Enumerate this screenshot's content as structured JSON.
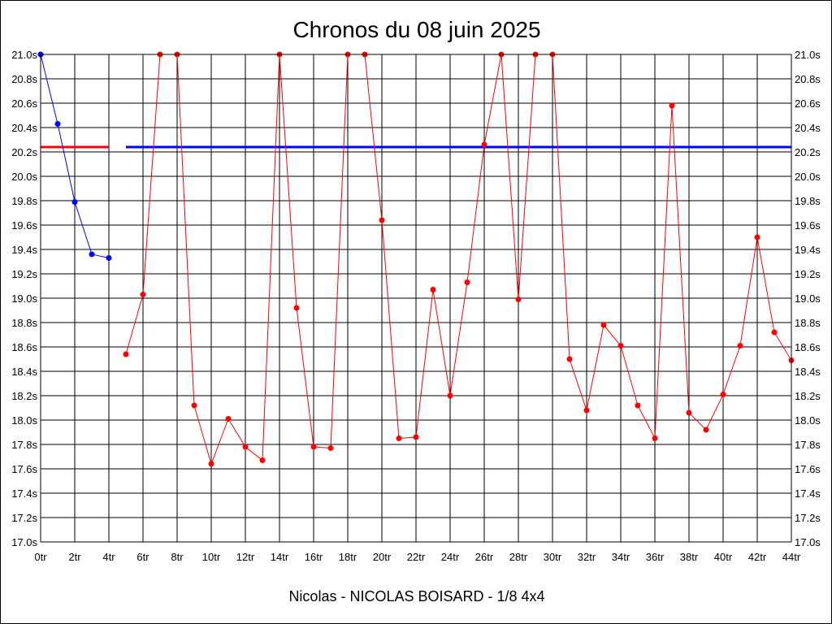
{
  "chart_data": {
    "type": "line",
    "title": "Chronos du 08 juin 2025",
    "caption": "Nicolas - NICOLAS BOISARD - 1/8 4x4",
    "x_range": [
      0,
      44
    ],
    "x_tick_labels": [
      "0tr",
      "2tr",
      "4tr",
      "6tr",
      "8tr",
      "10tr",
      "12tr",
      "14tr",
      "16tr",
      "18tr",
      "20tr",
      "22tr",
      "24tr",
      "26tr",
      "28tr",
      "30tr",
      "32tr",
      "34tr",
      "36tr",
      "38tr",
      "40tr",
      "42tr",
      "44tr"
    ],
    "ylim": [
      17.0,
      21.0
    ],
    "y_tick_labels": [
      "17.0s",
      "17.2s",
      "17.4s",
      "17.6s",
      "17.8s",
      "18.0s",
      "18.2s",
      "18.4s",
      "18.6s",
      "18.8s",
      "19.0s",
      "19.2s",
      "19.4s",
      "19.6s",
      "19.8s",
      "20.0s",
      "20.2s",
      "20.4s",
      "20.6s",
      "20.8s",
      "21.0s"
    ],
    "y_axis_both_sides": true,
    "grid": true,
    "series": [
      {
        "color": "#0000ff",
        "x": [
          0,
          1,
          2,
          3,
          4
        ],
        "y": [
          21.0,
          20.43,
          19.79,
          19.36,
          19.33
        ]
      },
      {
        "color": "#ff0000",
        "x": [
          5,
          6,
          7,
          8,
          9,
          10,
          11,
          12,
          13,
          14,
          15,
          16,
          17,
          18,
          19,
          20,
          21,
          22,
          23,
          24,
          25,
          26,
          27,
          28,
          29,
          30,
          31,
          32,
          33,
          34,
          35,
          36,
          37,
          38,
          39,
          40,
          41,
          42,
          43,
          44
        ],
        "y": [
          18.54,
          19.03,
          21.0,
          21.0,
          18.12,
          17.64,
          18.01,
          17.78,
          17.67,
          21.0,
          18.92,
          17.78,
          17.77,
          21.0,
          21.0,
          19.64,
          17.85,
          17.86,
          19.07,
          18.2,
          19.13,
          20.26,
          21.0,
          18.99,
          21.0,
          21.0,
          18.5,
          18.08,
          18.78,
          18.61,
          18.12,
          17.85,
          20.58,
          18.06,
          17.92,
          18.21,
          18.61,
          19.5,
          18.72,
          18.49
        ]
      }
    ],
    "reference_lines": [
      {
        "color": "#ff0000",
        "y": 20.24,
        "x": [
          0,
          4
        ]
      },
      {
        "color": "#0000ff",
        "y": 20.24,
        "x": [
          5,
          44
        ]
      }
    ]
  }
}
